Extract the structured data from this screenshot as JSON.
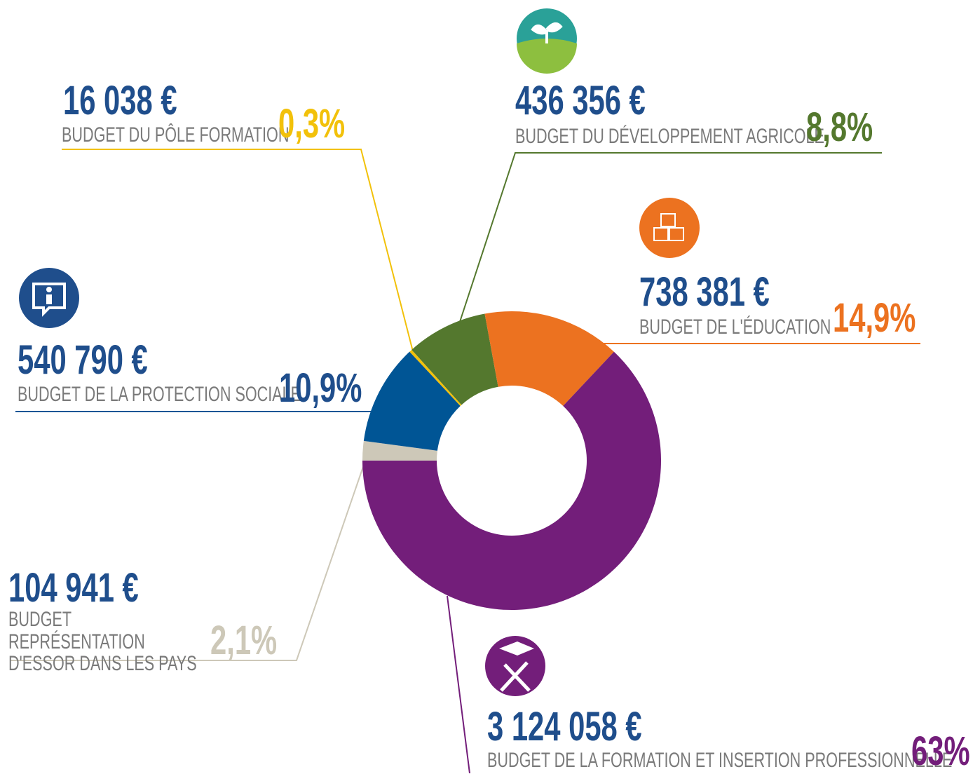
{
  "chart_data": {
    "type": "donut",
    "categories": [
      "BUDGET DU DÉVELOPPEMENT AGRICOLE",
      "BUDGET DE L'ÉDUCATION",
      "BUDGET DE LA FORMATION ET INSERTION PROFESSIONNELLE",
      "BUDGET REPRÉSENTATION D'ESSOR DANS LES PAYS",
      "BUDGET DE LA PROTECTION SOCIALE",
      "BUDGET DU PÔLE FORMATION"
    ],
    "amounts": [
      "436 356 €",
      "738 381 €",
      "3 124 058 €",
      "104 941 €",
      "540 790 €",
      "16 038 €"
    ],
    "values": [
      8.8,
      14.9,
      63,
      2.1,
      10.9,
      0.3
    ],
    "value_labels": [
      "8,8%",
      "14,9%",
      "63%",
      "2,1%",
      "10,9%",
      "0,3%"
    ],
    "colors": [
      "#54782e",
      "#ec7220",
      "#731e7a",
      "#cdc8b8",
      "#005595",
      "#f2c10a"
    ]
  }
}
